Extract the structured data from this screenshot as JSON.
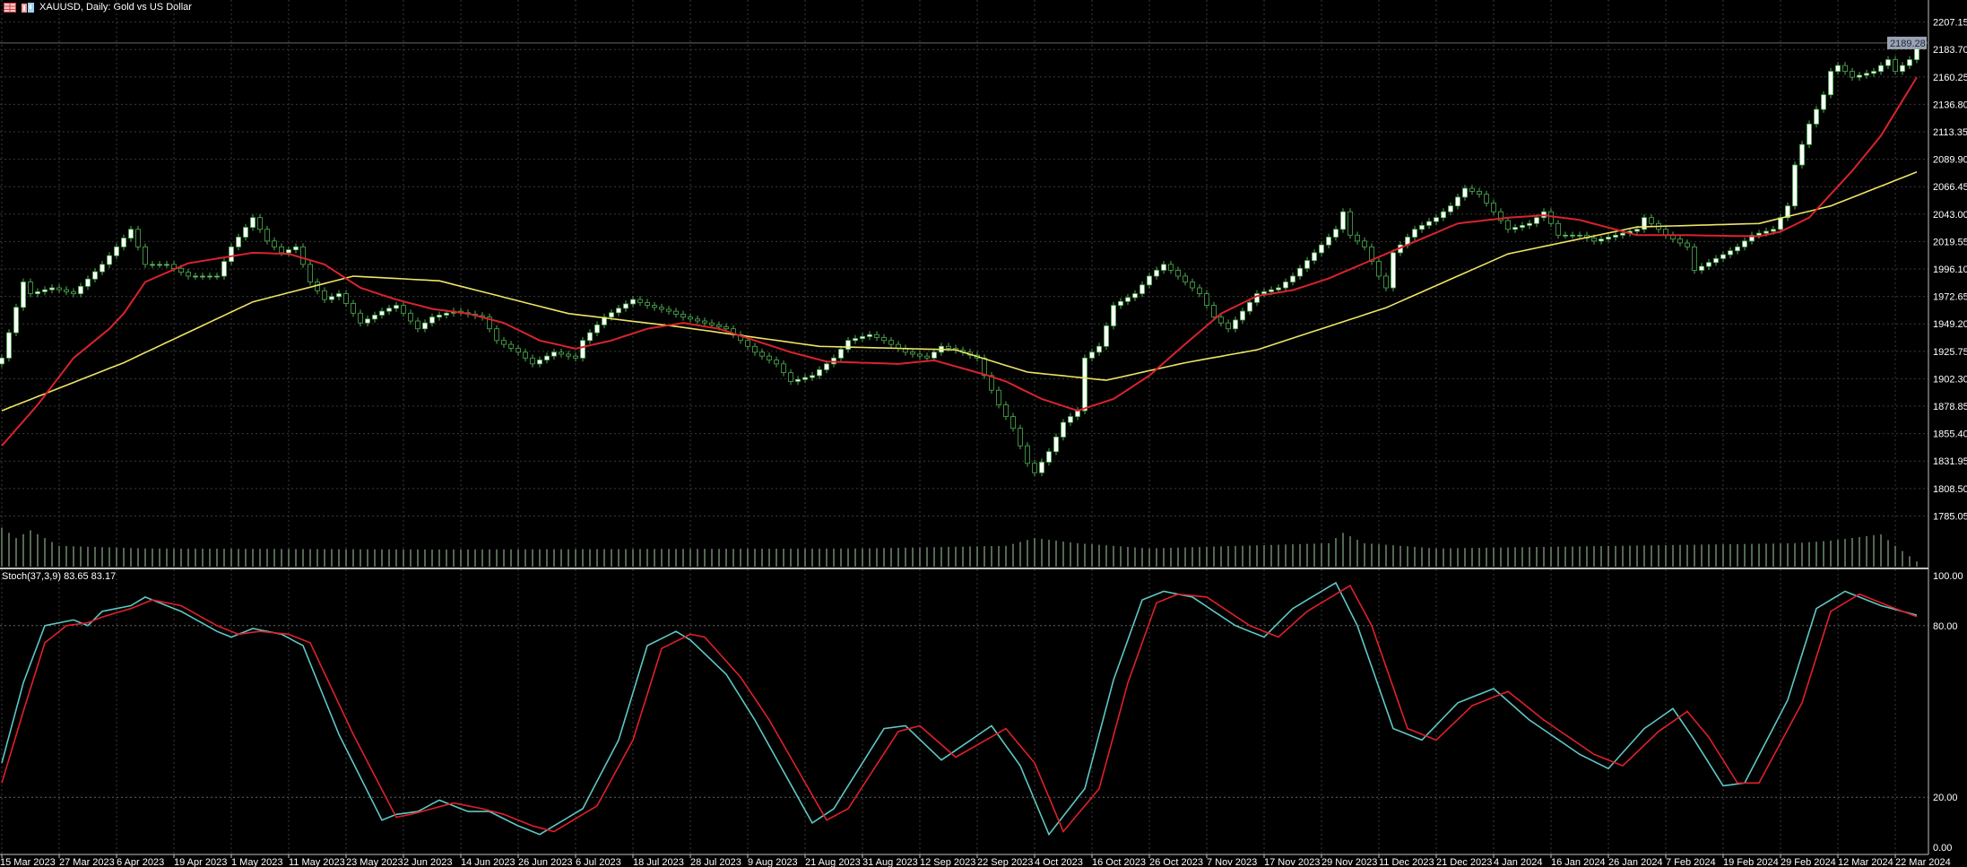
{
  "header": {
    "symbol_title": "XAUUSD, Daily:  Gold vs US Dollar",
    "icons": [
      "table-icon",
      "chart-type-icon"
    ]
  },
  "colors": {
    "background": "#000000",
    "grid": "#3a3a3a",
    "axis": "#c0c0c0",
    "candle_up_body": "#ffffff",
    "candle_down_body": "#000000",
    "candle_outline": "#4caf50",
    "volume": "#6f8a6c",
    "ma_fast": "#d9232d",
    "ma_slow": "#eee466",
    "stoch_main": "#5ec8c4",
    "stoch_signal": "#e0202a",
    "price_label_bg": "#9aa3b0"
  },
  "chart_data": [
    {
      "type": "candlestick",
      "title": "XAUUSD, Daily:  Gold vs US Dollar",
      "ylim": [
        1740,
        2226
      ],
      "y_ticks": [
        "2207.15",
        "2183.70",
        "2160.25",
        "2136.80",
        "2113.35",
        "2089.90",
        "2066.45",
        "2043.00",
        "2019.55",
        "1996.10",
        "1972.65",
        "1949.20",
        "1925.75",
        "1902.30",
        "1878.85",
        "1855.40",
        "1831.95",
        "1808.50",
        "1785.05"
      ],
      "current_price": "2189.28",
      "bar_count": 268,
      "x_ticks": [
        "15 Mar 2023",
        "27 Mar 2023",
        "6 Apr 2023",
        "19 Apr 2023",
        "1 May 2023",
        "11 May 2023",
        "23 May 2023",
        "2 Jun 2023",
        "14 Jun 2023",
        "26 Jun 2023",
        "6 Jul 2023",
        "18 Jul 2023",
        "28 Jul 2023",
        "9 Aug 2023",
        "21 Aug 2023",
        "31 Aug 2023",
        "12 Sep 2023",
        "22 Sep 2023",
        "4 Oct 2023",
        "16 Oct 2023",
        "26 Oct 2023",
        "7 Nov 2023",
        "17 Nov 2023",
        "29 Nov 2023",
        "11 Dec 2023",
        "21 Dec 2023",
        "4 Jan 2024",
        "16 Jan 2024",
        "26 Jan 2024",
        "7 Feb 2024",
        "19 Feb 2024",
        "29 Feb 2024",
        "12 Mar 2024",
        "22 Mar 2024"
      ],
      "x_tick_every_bars": 8,
      "grid": true,
      "close_path": [
        [
          0,
          1920
        ],
        [
          3,
          1985
        ],
        [
          4,
          1975
        ],
        [
          7,
          1980
        ],
        [
          10,
          1975
        ],
        [
          14,
          2000
        ],
        [
          16,
          2015
        ],
        [
          18,
          2030
        ],
        [
          20,
          2000
        ],
        [
          23,
          2000
        ],
        [
          26,
          1990
        ],
        [
          30,
          1990
        ],
        [
          32,
          2015
        ],
        [
          35,
          2040
        ],
        [
          37,
          2020
        ],
        [
          39,
          2010
        ],
        [
          41,
          2015
        ],
        [
          43,
          1985
        ],
        [
          45,
          1970
        ],
        [
          47,
          1975
        ],
        [
          50,
          1950
        ],
        [
          53,
          1960
        ],
        [
          55,
          1965
        ],
        [
          58,
          1945
        ],
        [
          60,
          1955
        ],
        [
          63,
          1960
        ],
        [
          67,
          1955
        ],
        [
          69,
          1935
        ],
        [
          72,
          1925
        ],
        [
          74,
          1915
        ],
        [
          77,
          1925
        ],
        [
          80,
          1920
        ],
        [
          81,
          1935
        ],
        [
          84,
          1955
        ],
        [
          88,
          1970
        ],
        [
          90,
          1965
        ],
        [
          93,
          1960
        ],
        [
          95,
          1955
        ],
        [
          98,
          1950
        ],
        [
          101,
          1945
        ],
        [
          103,
          1935
        ],
        [
          105,
          1925
        ],
        [
          108,
          1915
        ],
        [
          110,
          1900
        ],
        [
          113,
          1905
        ],
        [
          116,
          1920
        ],
        [
          118,
          1935
        ],
        [
          121,
          1940
        ],
        [
          123,
          1935
        ],
        [
          126,
          1925
        ],
        [
          129,
          1920
        ],
        [
          131,
          1930
        ],
        [
          134,
          1925
        ],
        [
          136,
          1920
        ],
        [
          137,
          1905
        ],
        [
          139,
          1880
        ],
        [
          141,
          1860
        ],
        [
          143,
          1830
        ],
        [
          144,
          1822
        ],
        [
          146,
          1840
        ],
        [
          148,
          1865
        ],
        [
          150,
          1875
        ],
        [
          151,
          1920
        ],
        [
          153,
          1930
        ],
        [
          155,
          1965
        ],
        [
          158,
          1975
        ],
        [
          160,
          1990
        ],
        [
          162,
          2000
        ],
        [
          165,
          1985
        ],
        [
          167,
          1975
        ],
        [
          169,
          1955
        ],
        [
          171,
          1945
        ],
        [
          173,
          1960
        ],
        [
          175,
          1975
        ],
        [
          178,
          1980
        ],
        [
          180,
          1990
        ],
        [
          183,
          2010
        ],
        [
          186,
          2030
        ],
        [
          187,
          2045
        ],
        [
          188,
          2025
        ],
        [
          190,
          2015
        ],
        [
          192,
          1990
        ],
        [
          193,
          1980
        ],
        [
          194,
          2010
        ],
        [
          197,
          2030
        ],
        [
          200,
          2040
        ],
        [
          202,
          2050
        ],
        [
          204,
          2065
        ],
        [
          206,
          2060
        ],
        [
          208,
          2045
        ],
        [
          210,
          2030
        ],
        [
          213,
          2035
        ],
        [
          215,
          2045
        ],
        [
          217,
          2025
        ],
        [
          220,
          2025
        ],
        [
          222,
          2020
        ],
        [
          225,
          2025
        ],
        [
          228,
          2030
        ],
        [
          229,
          2040
        ],
        [
          232,
          2025
        ],
        [
          235,
          2015
        ],
        [
          236,
          1995
        ],
        [
          239,
          2005
        ],
        [
          242,
          2015
        ],
        [
          244,
          2025
        ],
        [
          247,
          2030
        ],
        [
          249,
          2050
        ],
        [
          250,
          2085
        ],
        [
          252,
          2120
        ],
        [
          254,
          2145
        ],
        [
          255,
          2165
        ],
        [
          256,
          2170
        ],
        [
          258,
          2160
        ],
        [
          261,
          2165
        ],
        [
          263,
          2175
        ],
        [
          264,
          2165
        ],
        [
          266,
          2175
        ],
        [
          267,
          2189.28
        ]
      ],
      "ma_fast": [
        [
          0,
          1845
        ],
        [
          5,
          1880
        ],
        [
          10,
          1920
        ],
        [
          15,
          1945
        ],
        [
          17,
          1958
        ],
        [
          20,
          1985
        ],
        [
          26,
          2001
        ],
        [
          30,
          2005
        ],
        [
          35,
          2010
        ],
        [
          40,
          2009
        ],
        [
          45,
          2000
        ],
        [
          50,
          1980
        ],
        [
          55,
          1970
        ],
        [
          60,
          1962
        ],
        [
          65,
          1958
        ],
        [
          70,
          1950
        ],
        [
          75,
          1935
        ],
        [
          80,
          1928
        ],
        [
          85,
          1935
        ],
        [
          90,
          1945
        ],
        [
          95,
          1950
        ],
        [
          100,
          1945
        ],
        [
          105,
          1935
        ],
        [
          110,
          1925
        ],
        [
          115,
          1917
        ],
        [
          125,
          1915
        ],
        [
          130,
          1918
        ],
        [
          137,
          1906
        ],
        [
          140,
          1900
        ],
        [
          145,
          1885
        ],
        [
          150,
          1875
        ],
        [
          155,
          1885
        ],
        [
          160,
          1905
        ],
        [
          165,
          1932
        ],
        [
          170,
          1958
        ],
        [
          175,
          1973
        ],
        [
          180,
          1978
        ],
        [
          185,
          1988
        ],
        [
          193,
          2009
        ],
        [
          203,
          2035
        ],
        [
          210,
          2040
        ],
        [
          215,
          2042
        ],
        [
          220,
          2038
        ],
        [
          228,
          2025
        ],
        [
          235,
          2025
        ],
        [
          245,
          2024
        ],
        [
          248,
          2028
        ],
        [
          252,
          2040
        ],
        [
          258,
          2080
        ],
        [
          262,
          2110
        ],
        [
          267,
          2160
        ]
      ],
      "ma_slow": [
        [
          0,
          1875
        ],
        [
          17,
          1916
        ],
        [
          35,
          1968
        ],
        [
          49,
          1990
        ],
        [
          61,
          1986
        ],
        [
          79,
          1958
        ],
        [
          94,
          1947
        ],
        [
          114,
          1930
        ],
        [
          133,
          1927
        ],
        [
          143,
          1908
        ],
        [
          154,
          1901
        ],
        [
          165,
          1916
        ],
        [
          175,
          1927
        ],
        [
          193,
          1963
        ],
        [
          210,
          2009
        ],
        [
          228,
          2032
        ],
        [
          245,
          2035
        ],
        [
          255,
          2050
        ],
        [
          267,
          2079
        ]
      ]
    },
    {
      "type": "line",
      "title": "Stoch(37,3,9) 83.65 83.17",
      "indicator": "Stoch(37,3,9)",
      "main_value": "83.65",
      "signal_value": "83.17",
      "ylim": [
        0,
        100
      ],
      "y_ticks": [
        "100.00",
        "80.00",
        "20.00",
        "0.00"
      ],
      "levels": [
        80,
        20
      ],
      "main": [
        [
          0,
          32
        ],
        [
          3,
          60
        ],
        [
          6,
          80
        ],
        [
          10,
          82
        ],
        [
          12,
          80
        ],
        [
          14,
          85
        ],
        [
          18,
          87
        ],
        [
          20,
          90
        ],
        [
          25,
          85
        ],
        [
          30,
          78
        ],
        [
          32,
          76
        ],
        [
          35,
          79
        ],
        [
          39,
          77
        ],
        [
          42,
          73
        ],
        [
          47,
          42
        ],
        [
          53,
          12
        ],
        [
          55,
          14
        ],
        [
          58,
          15
        ],
        [
          61,
          19
        ],
        [
          65,
          15
        ],
        [
          68,
          15
        ],
        [
          72,
          10
        ],
        [
          75,
          7
        ],
        [
          81,
          16
        ],
        [
          86,
          40
        ],
        [
          90,
          73
        ],
        [
          94,
          78
        ],
        [
          96,
          75
        ],
        [
          101,
          63
        ],
        [
          105,
          47
        ],
        [
          113,
          11
        ],
        [
          116,
          16
        ],
        [
          123,
          44
        ],
        [
          126,
          45
        ],
        [
          131,
          33
        ],
        [
          138,
          45
        ],
        [
          142,
          31
        ],
        [
          146,
          7
        ],
        [
          151,
          23
        ],
        [
          155,
          61
        ],
        [
          159,
          89
        ],
        [
          162,
          92
        ],
        [
          166,
          90
        ],
        [
          172,
          80
        ],
        [
          176,
          76
        ],
        [
          180,
          86
        ],
        [
          186,
          95
        ],
        [
          189,
          80
        ],
        [
          194,
          44
        ],
        [
          198,
          40
        ],
        [
          203,
          53
        ],
        [
          208,
          58
        ],
        [
          213,
          47
        ],
        [
          220,
          35
        ],
        [
          224,
          30
        ],
        [
          229,
          44
        ],
        [
          233,
          51
        ],
        [
          236,
          40
        ],
        [
          240,
          24
        ],
        [
          243,
          25
        ],
        [
          249,
          54
        ],
        [
          253,
          86
        ],
        [
          257,
          92
        ],
        [
          262,
          87
        ],
        [
          267,
          83.65
        ]
      ],
      "signal": [
        [
          0,
          25
        ],
        [
          3,
          50
        ],
        [
          6,
          74
        ],
        [
          9,
          80
        ],
        [
          12,
          81
        ],
        [
          14,
          83
        ],
        [
          18,
          86
        ],
        [
          21,
          89
        ],
        [
          25,
          87
        ],
        [
          30,
          80
        ],
        [
          33,
          77
        ],
        [
          36,
          78
        ],
        [
          40,
          77
        ],
        [
          43,
          74
        ],
        [
          49,
          42
        ],
        [
          55,
          13
        ],
        [
          57,
          14
        ],
        [
          60,
          16
        ],
        [
          63,
          18
        ],
        [
          67,
          16
        ],
        [
          70,
          14
        ],
        [
          74,
          10
        ],
        [
          77,
          8
        ],
        [
          83,
          17
        ],
        [
          88,
          40
        ],
        [
          92,
          72
        ],
        [
          96,
          77
        ],
        [
          98,
          76
        ],
        [
          103,
          62
        ],
        [
          107,
          47
        ],
        [
          115,
          12
        ],
        [
          118,
          16
        ],
        [
          125,
          43
        ],
        [
          128,
          45
        ],
        [
          133,
          34
        ],
        [
          140,
          44
        ],
        [
          144,
          32
        ],
        [
          148,
          8
        ],
        [
          153,
          23
        ],
        [
          157,
          60
        ],
        [
          161,
          88
        ],
        [
          164,
          91
        ],
        [
          168,
          90
        ],
        [
          174,
          80
        ],
        [
          178,
          76
        ],
        [
          182,
          85
        ],
        [
          188,
          94
        ],
        [
          191,
          80
        ],
        [
          196,
          44
        ],
        [
          200,
          40
        ],
        [
          205,
          52
        ],
        [
          210,
          57
        ],
        [
          215,
          47
        ],
        [
          222,
          35
        ],
        [
          226,
          31
        ],
        [
          231,
          43
        ],
        [
          235,
          50
        ],
        [
          238,
          41
        ],
        [
          242,
          25
        ],
        [
          245,
          25
        ],
        [
          251,
          53
        ],
        [
          255,
          85
        ],
        [
          259,
          91
        ],
        [
          264,
          86
        ],
        [
          267,
          83.17
        ]
      ]
    }
  ],
  "volume_relative": [
    [
      0,
      0.75
    ],
    [
      2,
      0.55
    ],
    [
      4,
      0.7
    ],
    [
      8,
      0.4
    ],
    [
      20,
      0.35
    ],
    [
      60,
      0.33
    ],
    [
      120,
      0.35
    ],
    [
      140,
      0.4
    ],
    [
      144,
      0.55
    ],
    [
      150,
      0.45
    ],
    [
      160,
      0.35
    ],
    [
      185,
      0.45
    ],
    [
      187,
      0.65
    ],
    [
      190,
      0.45
    ],
    [
      200,
      0.35
    ],
    [
      250,
      0.45
    ],
    [
      255,
      0.5
    ],
    [
      262,
      0.62
    ],
    [
      264,
      0.4
    ],
    [
      267,
      0.1
    ]
  ]
}
